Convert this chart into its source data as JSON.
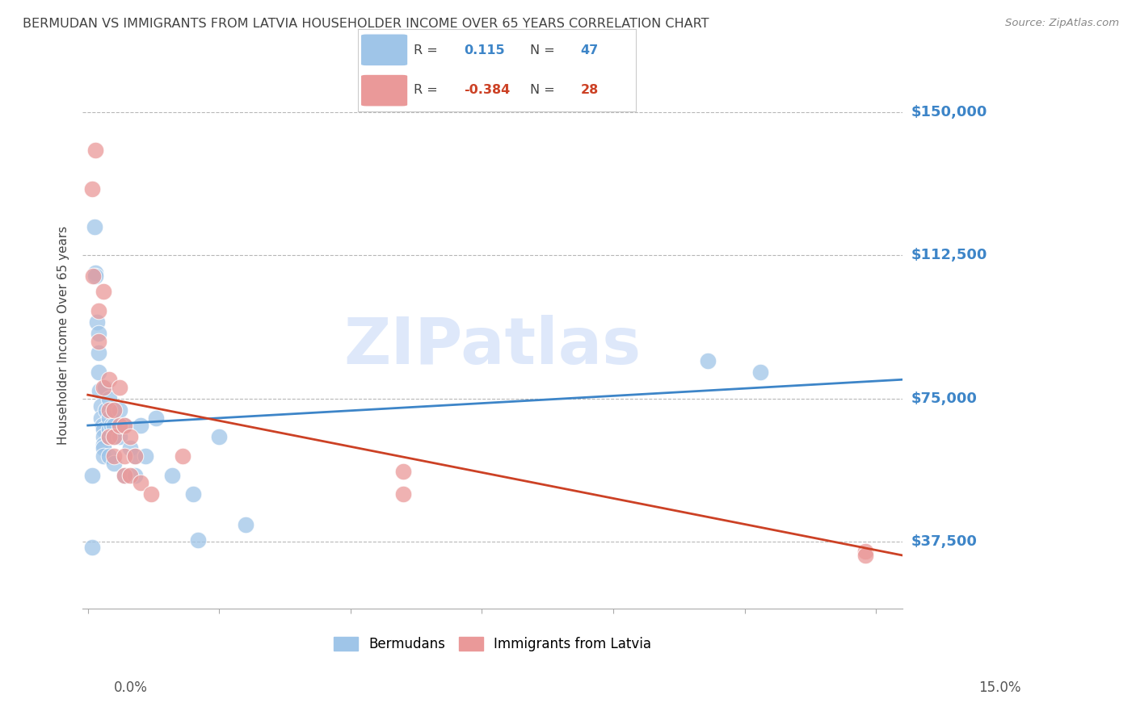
{
  "title": "BERMUDAN VS IMMIGRANTS FROM LATVIA HOUSEHOLDER INCOME OVER 65 YEARS CORRELATION CHART",
  "source": "Source: ZipAtlas.com",
  "ylabel": "Householder Income Over 65 years",
  "y_ticks": [
    37500,
    75000,
    112500,
    150000
  ],
  "y_tick_labels": [
    "$37,500",
    "$75,000",
    "$112,500",
    "$150,000"
  ],
  "y_min": 20000,
  "y_max": 163000,
  "x_min": -0.001,
  "x_max": 0.155,
  "bermudans_R": 0.115,
  "bermudans_N": 47,
  "latvia_R": -0.384,
  "latvia_N": 28,
  "blue_color": "#9fc5e8",
  "pink_color": "#ea9999",
  "blue_line_color": "#3d85c8",
  "pink_line_color": "#cc4125",
  "watermark_color": "#c9daf8",
  "title_color": "#434343",
  "tick_label_color": "#3d85c8",
  "background_color": "#ffffff",
  "grid_color": "#b7b7b7",
  "blue_line_x0": 0.0,
  "blue_line_y0": 68000,
  "blue_line_x1": 0.155,
  "blue_line_y1": 80000,
  "pink_line_x0": 0.0,
  "pink_line_y0": 76000,
  "pink_line_x1": 0.155,
  "pink_line_y1": 34000,
  "bermudans_x": [
    0.0008,
    0.0008,
    0.0012,
    0.0015,
    0.0015,
    0.0018,
    0.002,
    0.002,
    0.002,
    0.0022,
    0.0025,
    0.0025,
    0.0028,
    0.003,
    0.003,
    0.003,
    0.003,
    0.003,
    0.0032,
    0.0035,
    0.004,
    0.004,
    0.004,
    0.004,
    0.004,
    0.0045,
    0.005,
    0.005,
    0.005,
    0.005,
    0.006,
    0.006,
    0.007,
    0.007,
    0.008,
    0.009,
    0.009,
    0.01,
    0.011,
    0.013,
    0.016,
    0.02,
    0.021,
    0.025,
    0.03,
    0.118,
    0.128
  ],
  "bermudans_y": [
    55000,
    36000,
    120000,
    108000,
    107000,
    95000,
    92000,
    87000,
    82000,
    77000,
    73000,
    70000,
    68000,
    67000,
    65000,
    63000,
    62000,
    60000,
    78000,
    72000,
    75000,
    70000,
    67000,
    65000,
    60000,
    68000,
    72000,
    68000,
    65000,
    58000,
    72000,
    65000,
    68000,
    55000,
    62000,
    60000,
    55000,
    68000,
    60000,
    70000,
    55000,
    50000,
    38000,
    65000,
    42000,
    85000,
    82000
  ],
  "latvia_x": [
    0.0008,
    0.001,
    0.0015,
    0.002,
    0.002,
    0.003,
    0.003,
    0.004,
    0.004,
    0.004,
    0.005,
    0.005,
    0.005,
    0.006,
    0.006,
    0.007,
    0.007,
    0.007,
    0.008,
    0.008,
    0.009,
    0.01,
    0.012,
    0.018,
    0.06,
    0.06,
    0.148,
    0.148
  ],
  "latvia_y": [
    130000,
    107000,
    140000,
    98000,
    90000,
    103000,
    78000,
    80000,
    72000,
    65000,
    72000,
    65000,
    60000,
    78000,
    68000,
    68000,
    60000,
    55000,
    65000,
    55000,
    60000,
    53000,
    50000,
    60000,
    56000,
    50000,
    35000,
    34000
  ]
}
